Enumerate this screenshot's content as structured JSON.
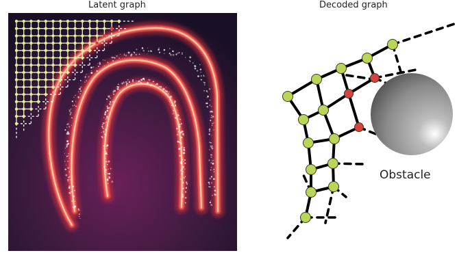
{
  "latent": {
    "title": "Latent graph",
    "colors": {
      "background_dark": "#1a0f26",
      "background_mid": "#5a1e4e",
      "obstacle_glow_outer": "#e0303a",
      "obstacle_glow_inner": "#ffc7a8",
      "grid_node": "#e6ec9a",
      "grid_edge": "#e8f0b8",
      "grid_dashed": "#ffffff",
      "sample_points": "#ffffff"
    }
  },
  "decoded": {
    "title": "Decoded graph",
    "obstacle_label": "Obstacle",
    "colors": {
      "node_free": "#b9d65a",
      "node_collision": "#d94040",
      "edge": "#000000",
      "sphere_light": "#ffffff",
      "sphere_dark": "#4a4a4a"
    }
  }
}
